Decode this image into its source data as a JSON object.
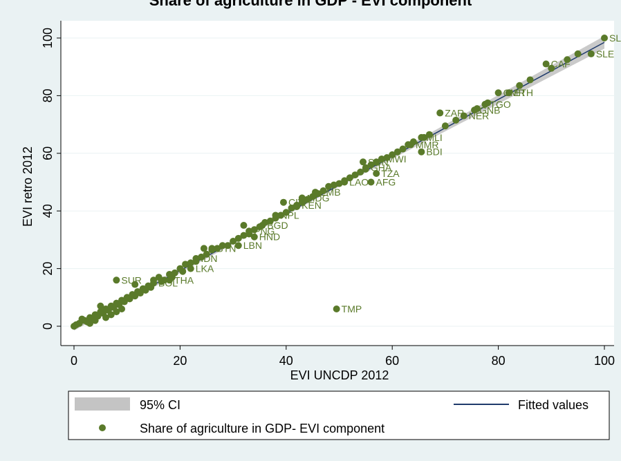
{
  "chart_data": {
    "type": "scatter",
    "title": "Share of agriculture in GDP - EVI component",
    "xlabel": "EVI UNCDP 2012",
    "ylabel": "EVI retro 2012",
    "xlim": [
      0,
      100
    ],
    "ylim": [
      0,
      100
    ],
    "xticks": [
      "0",
      "20",
      "40",
      "60",
      "80",
      "100"
    ],
    "yticks": [
      "0",
      "20",
      "40",
      "60",
      "80",
      "100"
    ],
    "grid": true,
    "legend_position": "bottom",
    "colors": {
      "points": "#5a7a2a",
      "fit_line": "#1f3a6b",
      "ci_band": "#c4c4c4",
      "plot_bg": "#ffffff",
      "outer_bg": "#eaf2f3"
    },
    "fit": {
      "x": [
        0,
        100
      ],
      "y": [
        -0.5,
        98.5
      ]
    },
    "ci_band": {
      "x": [
        0,
        50,
        100
      ],
      "low": [
        -1.5,
        48.5,
        96.3
      ],
      "high": [
        0.5,
        49.5,
        100.7
      ]
    },
    "labeled_points": [
      {
        "label": "SLE",
        "x": 100,
        "y": 100
      },
      {
        "label": "SLE",
        "x": 97.5,
        "y": 94.5
      },
      {
        "label": "CAF",
        "x": 89,
        "y": 91
      },
      {
        "label": "CMR",
        "x": 80,
        "y": 81
      },
      {
        "label": "ETH",
        "x": 82,
        "y": 81
      },
      {
        "label": "TGO",
        "x": 77.5,
        "y": 77
      },
      {
        "label": "GNB",
        "x": 75.5,
        "y": 75
      },
      {
        "label": "NER",
        "x": 73.5,
        "y": 73
      },
      {
        "label": "ZAR",
        "x": 69,
        "y": 74
      },
      {
        "label": "MLI",
        "x": 65.5,
        "y": 65.5
      },
      {
        "label": "MMR",
        "x": 63.5,
        "y": 63
      },
      {
        "label": "BDI",
        "x": 65.5,
        "y": 60.5
      },
      {
        "label": "SDN",
        "x": 54.5,
        "y": 57
      },
      {
        "label": "MWI",
        "x": 58,
        "y": 58
      },
      {
        "label": "GHA",
        "x": 55,
        "y": 55
      },
      {
        "label": "TZA",
        "x": 57,
        "y": 53
      },
      {
        "label": "AFG",
        "x": 56,
        "y": 50
      },
      {
        "label": "LAO",
        "x": 51,
        "y": 50
      },
      {
        "label": "ZMB",
        "x": 45.5,
        "y": 46.5
      },
      {
        "label": "MDG",
        "x": 43,
        "y": 44.5
      },
      {
        "label": "CIV",
        "x": 39.5,
        "y": 43
      },
      {
        "label": "KEN",
        "x": 42,
        "y": 42
      },
      {
        "label": "NPL",
        "x": 38,
        "y": 38.5
      },
      {
        "label": "BGD",
        "x": 35.5,
        "y": 35
      },
      {
        "label": "PNG",
        "x": 33,
        "y": 33
      },
      {
        "label": "HND",
        "x": 34,
        "y": 31
      },
      {
        "label": "LBN",
        "x": 31,
        "y": 28
      },
      {
        "label": "BTN",
        "x": 26,
        "y": 27
      },
      {
        "label": "IDN",
        "x": 23,
        "y": 23.5
      },
      {
        "label": "LKA",
        "x": 22,
        "y": 20
      },
      {
        "label": "SUR",
        "x": 8,
        "y": 16
      },
      {
        "label": "THA",
        "x": 18,
        "y": 16
      },
      {
        "label": "BOL",
        "x": 15,
        "y": 15
      },
      {
        "label": "TMP",
        "x": 49.5,
        "y": 6
      }
    ],
    "unlabeled_points": [
      [
        0,
        0
      ],
      [
        0.4,
        0.5
      ],
      [
        1,
        1
      ],
      [
        1.5,
        2.5
      ],
      [
        2,
        2
      ],
      [
        2.5,
        1.5
      ],
      [
        3,
        3
      ],
      [
        3.5,
        2.5
      ],
      [
        4,
        4
      ],
      [
        4.5,
        3.5
      ],
      [
        5,
        5
      ],
      [
        5.5,
        4.5
      ],
      [
        5,
        7
      ],
      [
        6,
        6
      ],
      [
        6.5,
        5.5
      ],
      [
        7,
        7
      ],
      [
        7.5,
        6.5
      ],
      [
        8,
        8
      ],
      [
        8.5,
        7.5
      ],
      [
        9,
        9
      ],
      [
        9.5,
        8.5
      ],
      [
        10,
        10
      ],
      [
        10.5,
        9.5
      ],
      [
        11,
        11
      ],
      [
        11.5,
        10.5
      ],
      [
        12,
        12
      ],
      [
        12.5,
        11.5
      ],
      [
        11.5,
        14.5
      ],
      [
        13,
        13
      ],
      [
        13.5,
        12.5
      ],
      [
        14,
        14
      ],
      [
        14.5,
        13.5
      ],
      [
        15,
        16
      ],
      [
        16,
        17
      ],
      [
        16.5,
        15.5
      ],
      [
        17,
        16
      ],
      [
        18,
        18
      ],
      [
        18.5,
        17
      ],
      [
        19,
        18.5
      ],
      [
        20,
        20
      ],
      [
        20.5,
        19
      ],
      [
        21,
        21.5
      ],
      [
        22,
        22
      ],
      [
        23,
        22.5
      ],
      [
        24,
        24
      ],
      [
        24.5,
        27
      ],
      [
        25,
        25
      ],
      [
        26,
        26.5
      ],
      [
        27,
        27
      ],
      [
        28,
        28
      ],
      [
        29,
        28
      ],
      [
        30,
        29.5
      ],
      [
        31,
        30.5
      ],
      [
        32,
        31.5
      ],
      [
        32,
        35
      ],
      [
        33,
        32
      ],
      [
        34,
        33.5
      ],
      [
        35,
        34.5
      ],
      [
        36,
        36
      ],
      [
        37,
        36.5
      ],
      [
        38,
        37.5
      ],
      [
        39,
        38.5
      ],
      [
        40,
        39.5
      ],
      [
        41,
        41
      ],
      [
        42,
        41.5
      ],
      [
        43,
        43
      ],
      [
        44,
        44
      ],
      [
        45,
        45
      ],
      [
        46,
        46
      ],
      [
        47,
        47
      ],
      [
        48,
        48.5
      ],
      [
        49,
        49
      ],
      [
        50,
        49.5
      ],
      [
        51,
        50.5
      ],
      [
        52,
        51.5
      ],
      [
        53,
        52.5
      ],
      [
        54,
        53.5
      ],
      [
        55,
        54.5
      ],
      [
        56,
        56
      ],
      [
        57,
        57
      ],
      [
        58,
        58
      ],
      [
        59,
        58.5
      ],
      [
        60,
        59.5
      ],
      [
        61,
        60.5
      ],
      [
        62,
        61.5
      ],
      [
        63,
        63
      ],
      [
        64,
        64
      ],
      [
        66,
        65.5
      ],
      [
        67,
        66.5
      ],
      [
        70,
        69.5
      ],
      [
        72,
        71.5
      ],
      [
        76,
        75.5
      ],
      [
        78,
        77.5
      ],
      [
        84,
        83.5
      ],
      [
        86,
        85.5
      ],
      [
        90,
        89.5
      ],
      [
        93,
        92.5
      ],
      [
        95,
        94.5
      ],
      [
        3,
        1
      ],
      [
        4,
        2
      ],
      [
        6,
        3
      ],
      [
        7,
        4
      ],
      [
        8,
        5
      ],
      [
        9,
        6
      ]
    ],
    "legend": {
      "ci": "95% CI",
      "fit": "Fitted values",
      "points": "Share of agriculture in GDP- EVI component"
    }
  }
}
